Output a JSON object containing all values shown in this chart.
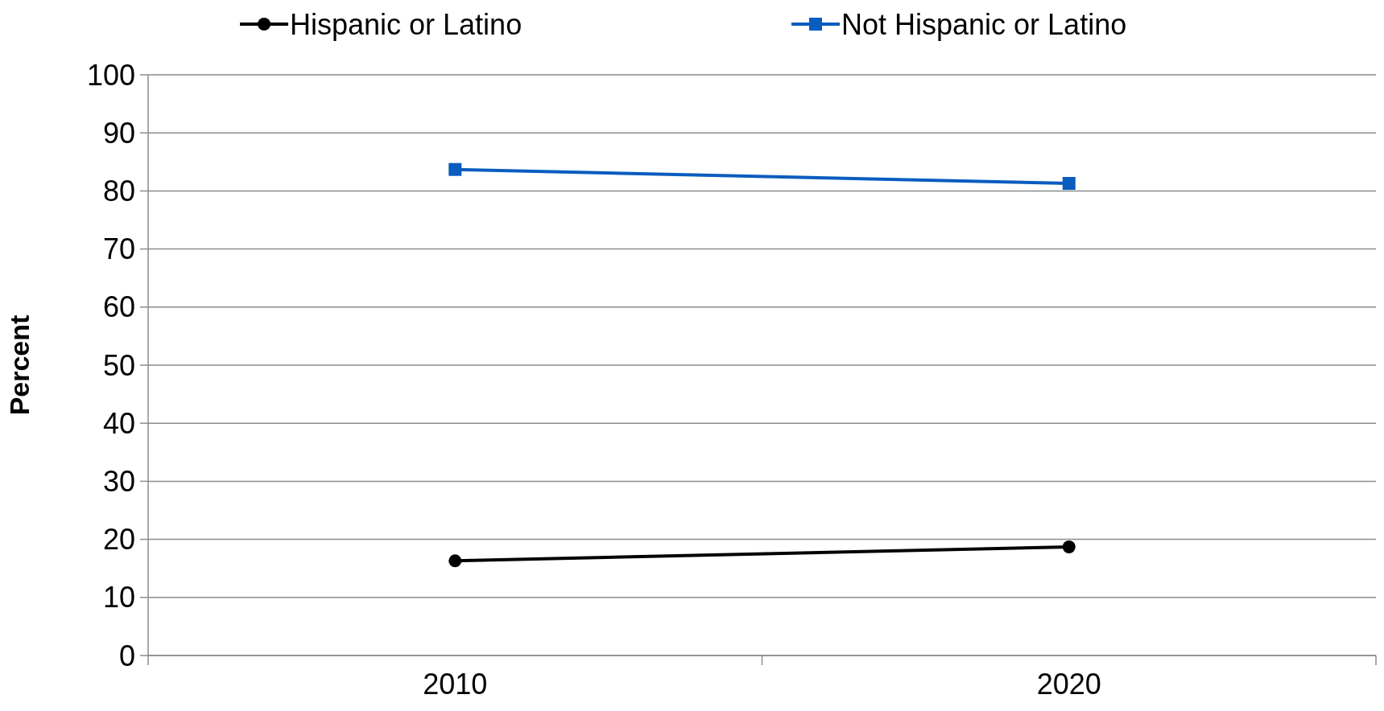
{
  "chart_data": {
    "type": "line",
    "ylabel": "Percent",
    "categories": [
      "2010",
      "2020"
    ],
    "series": [
      {
        "name": "Hispanic or Latino",
        "color": "#000000",
        "marker": "circle",
        "values": [
          16.3,
          18.7
        ]
      },
      {
        "name": "Not Hispanic or Latino",
        "color": "#0a5cbf",
        "marker": "square",
        "values": [
          83.7,
          81.3
        ]
      }
    ],
    "ylim": [
      0,
      100
    ],
    "yticks": [
      0,
      10,
      20,
      30,
      40,
      50,
      60,
      70,
      80,
      90,
      100
    ],
    "grid": "y",
    "legend": "top"
  }
}
